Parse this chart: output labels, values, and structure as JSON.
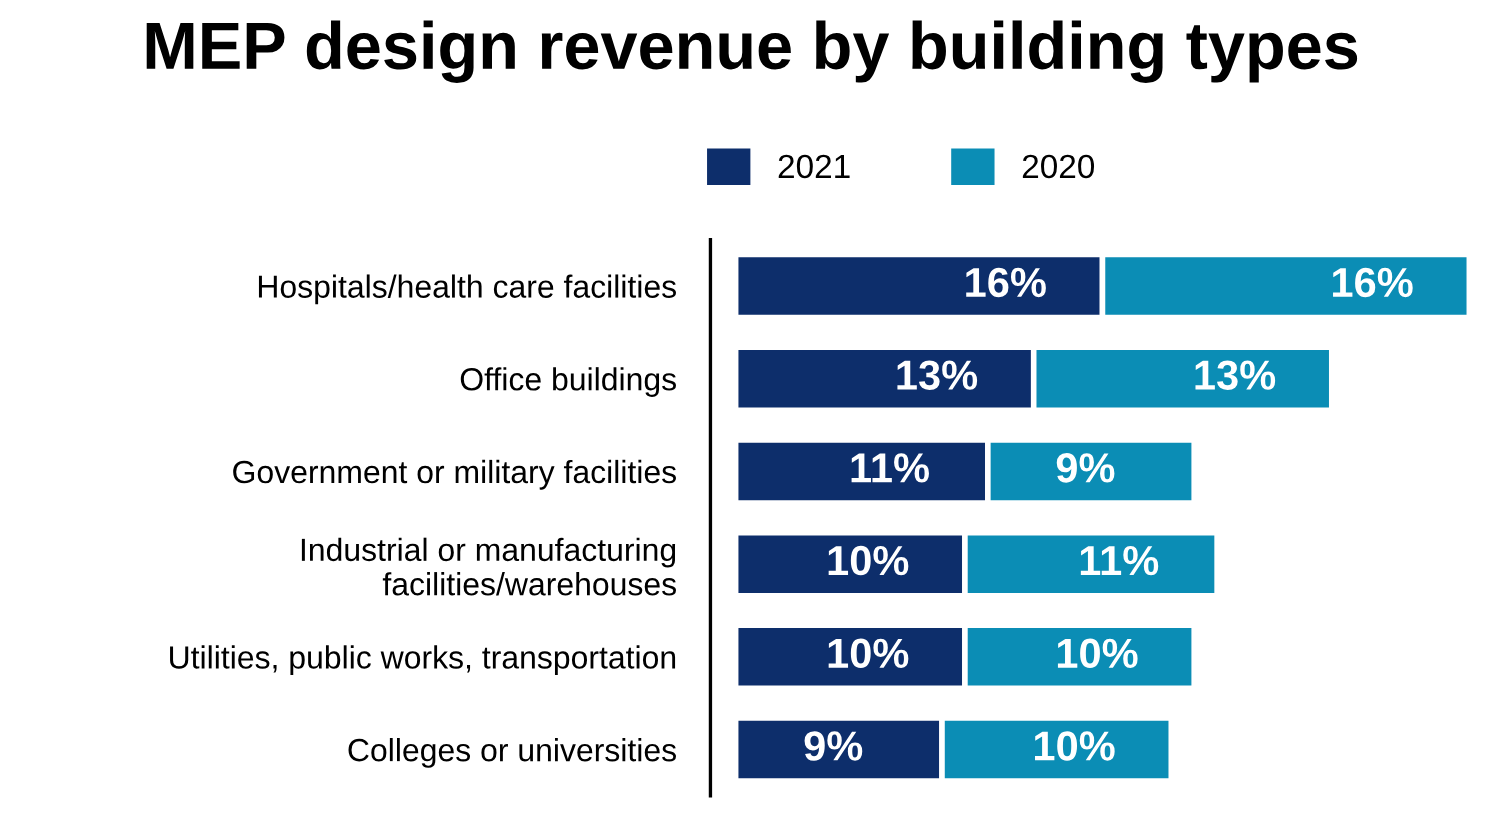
{
  "chart_data": {
    "type": "bar",
    "title": "MEP design revenue by building types",
    "orientation": "horizontal",
    "stacked": true,
    "legend": "top",
    "grid": false,
    "categories": [
      "Hospitals/health care facilities",
      "Office buildings",
      "Government or military facilities",
      "Industrial or manufacturing\nfacilities/warehouses",
      "Utilities, public works, transportation",
      "Colleges or universities"
    ],
    "series": [
      {
        "name": "2021",
        "color": "#0d2e6b",
        "values": [
          16,
          13,
          11,
          10,
          10,
          9
        ],
        "value_labels": [
          "16%",
          "13%",
          "11%",
          "10%",
          "10%",
          "9%"
        ]
      },
      {
        "name": "2020",
        "color": "#0b8db5",
        "values": [
          16,
          13,
          9,
          11,
          10,
          10
        ],
        "value_labels": [
          "16%",
          "13%",
          "9%",
          "11%",
          "10%",
          "10%"
        ]
      }
    ]
  }
}
